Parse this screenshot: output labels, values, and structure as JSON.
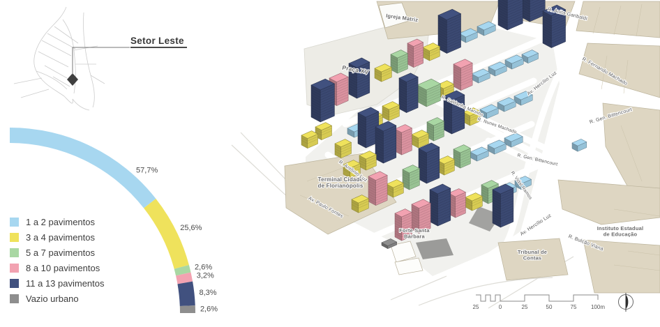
{
  "figure": {
    "locator_label": "Setor Leste"
  },
  "chart_data": {
    "type": "pie",
    "style": "quarter-donut-arc",
    "title": "",
    "categories": [
      "1 a 2 pavimentos",
      "3 a 4 pavimentos",
      "5 a 7 pavimentos",
      "8 a 10 pavimentos",
      "11 a 13 pavimentos",
      "Vazio urbano"
    ],
    "values": [
      57.7,
      25.6,
      2.6,
      3.2,
      8.3,
      2.6
    ],
    "labels": [
      "57,7%",
      "25,6%",
      "2,6%",
      "3,2%",
      "8,3%",
      "2,6%"
    ],
    "colors": [
      "#a7d7f0",
      "#efe25c",
      "#a9d7a3",
      "#f2a2b1",
      "#41517f",
      "#8e8e8e"
    ],
    "unit": "%",
    "arc_span_deg": 90,
    "legend_position": "bottom-left"
  },
  "map": {
    "area_labels": [
      {
        "lines": [
          "Igreja Matriz"
        ]
      },
      {
        "lines": [
          "Praça XV"
        ]
      },
      {
        "lines": [
          "Terminal Cidade",
          "de Florianópolis"
        ]
      },
      {
        "lines": [
          "Forte Santa",
          "Bárbara"
        ]
      },
      {
        "lines": [
          "Tribunal de",
          "Contas"
        ]
      },
      {
        "lines": [
          "Instituto Estadual",
          "de Educação"
        ]
      }
    ],
    "street_labels": [
      {
        "text": "R. Anita Garibaldi"
      },
      {
        "text": "R. Fernando Machado"
      },
      {
        "text": "Av. Hercílio Luz"
      },
      {
        "text": "R. Gen. Bittencourt"
      },
      {
        "text": "R. Gen. Bittencourt"
      },
      {
        "text": "R. Nunes Machado"
      },
      {
        "text": "R. Saldanha Marinho"
      },
      {
        "text": "R. Vidal Ramos"
      },
      {
        "text": "R. Antônio Luz"
      },
      {
        "text": "Av. Paulo Fontes"
      },
      {
        "text": "Av. Hercílio Luz"
      },
      {
        "text": "R. Bulcão Viana"
      }
    ],
    "scalebar": {
      "ticks": [
        "25",
        "0",
        "25",
        "50",
        "75",
        "100m"
      ]
    }
  }
}
